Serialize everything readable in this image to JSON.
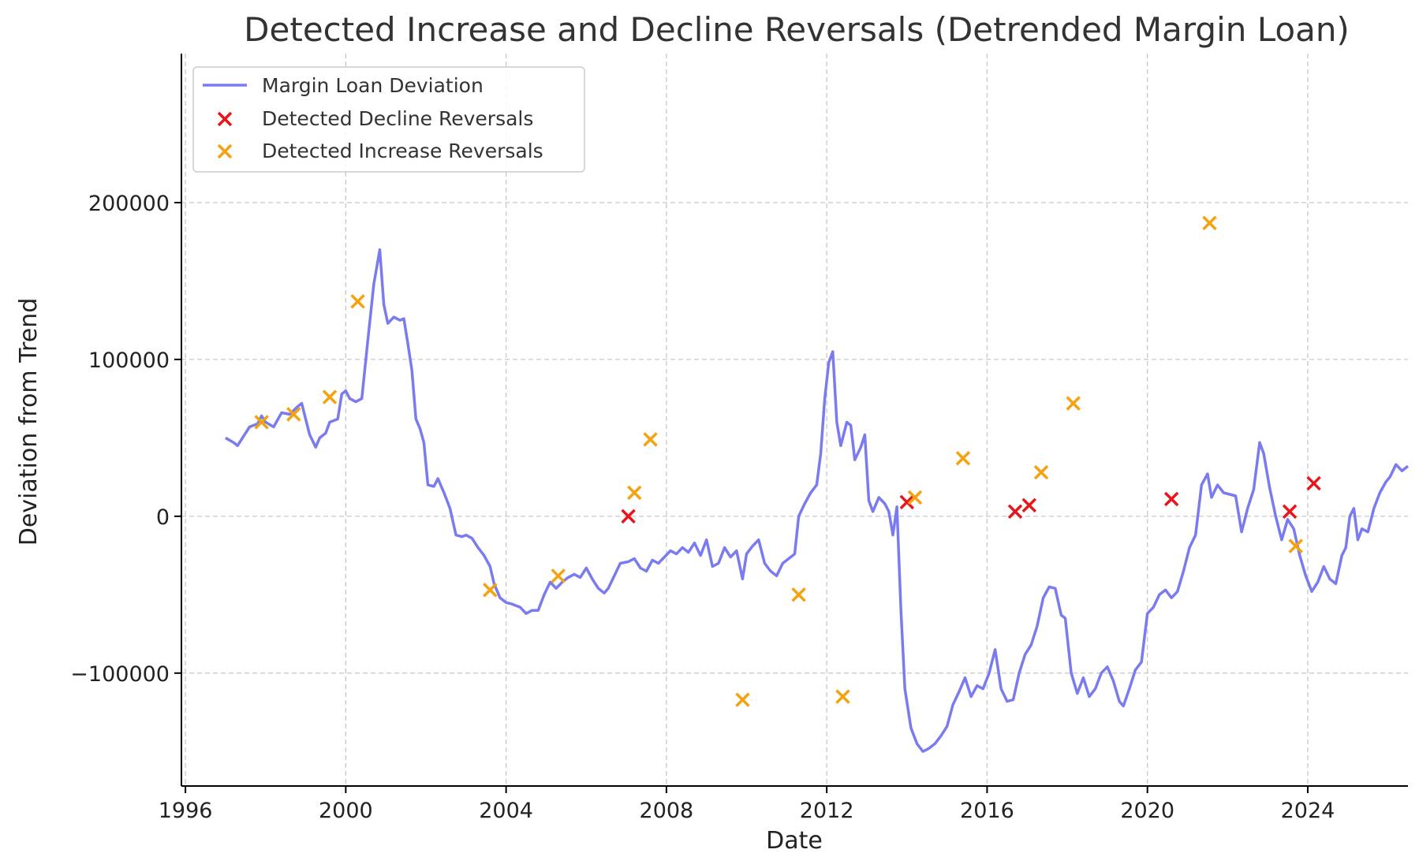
{
  "chart_data": {
    "type": "line",
    "title": "Detected Increase and Decline Reversals (Detrended Margin Loan)",
    "xlabel": "Date",
    "ylabel": "Deviation from Trend",
    "xlim": [
      1995.9,
      2026.5
    ],
    "ylim": [
      -172000,
      295000
    ],
    "x_ticks": [
      1996,
      2000,
      2004,
      2008,
      2012,
      2016,
      2020,
      2024
    ],
    "y_ticks": [
      -100000,
      0,
      100000,
      200000
    ],
    "y_tick_labels": [
      "−100000",
      "0",
      "100000",
      "200000"
    ],
    "grid": true,
    "legend_position": "top-left",
    "series": [
      {
        "name": "Margin Loan Deviation",
        "kind": "line",
        "color": "#7b7bf0",
        "points": [
          [
            1997.0,
            50000
          ],
          [
            1997.2,
            47000
          ],
          [
            1997.3,
            45000
          ],
          [
            1997.6,
            57000
          ],
          [
            1997.8,
            59000
          ],
          [
            1997.9,
            64000
          ],
          [
            1998.0,
            60000
          ],
          [
            1998.2,
            57000
          ],
          [
            1998.4,
            66000
          ],
          [
            1998.6,
            65000
          ],
          [
            1998.8,
            70000
          ],
          [
            1998.9,
            72000
          ],
          [
            1999.0,
            62000
          ],
          [
            1999.1,
            52000
          ],
          [
            1999.25,
            44000
          ],
          [
            1999.35,
            50000
          ],
          [
            1999.5,
            53000
          ],
          [
            1999.6,
            60000
          ],
          [
            1999.8,
            62000
          ],
          [
            1999.9,
            78000
          ],
          [
            2000.0,
            80000
          ],
          [
            2000.1,
            75000
          ],
          [
            2000.25,
            73000
          ],
          [
            2000.4,
            75000
          ],
          [
            2000.55,
            112000
          ],
          [
            2000.7,
            148000
          ],
          [
            2000.85,
            170000
          ],
          [
            2000.95,
            135000
          ],
          [
            2001.05,
            123000
          ],
          [
            2001.2,
            127000
          ],
          [
            2001.35,
            125000
          ],
          [
            2001.45,
            126000
          ],
          [
            2001.55,
            110000
          ],
          [
            2001.65,
            93000
          ],
          [
            2001.75,
            62000
          ],
          [
            2001.85,
            56000
          ],
          [
            2001.95,
            47000
          ],
          [
            2002.05,
            20000
          ],
          [
            2002.2,
            19000
          ],
          [
            2002.3,
            24000
          ],
          [
            2002.45,
            15000
          ],
          [
            2002.6,
            5000
          ],
          [
            2002.75,
            -12000
          ],
          [
            2002.9,
            -13000
          ],
          [
            2003.0,
            -12000
          ],
          [
            2003.15,
            -14000
          ],
          [
            2003.3,
            -20000
          ],
          [
            2003.45,
            -25000
          ],
          [
            2003.6,
            -32000
          ],
          [
            2003.7,
            -43000
          ],
          [
            2003.85,
            -52000
          ],
          [
            2004.0,
            -55000
          ],
          [
            2004.15,
            -56000
          ],
          [
            2004.35,
            -58000
          ],
          [
            2004.5,
            -62000
          ],
          [
            2004.65,
            -60000
          ],
          [
            2004.8,
            -60000
          ],
          [
            2004.95,
            -50000
          ],
          [
            2005.1,
            -42000
          ],
          [
            2005.25,
            -46000
          ],
          [
            2005.4,
            -42000
          ],
          [
            2005.55,
            -39000
          ],
          [
            2005.7,
            -37000
          ],
          [
            2005.85,
            -39000
          ],
          [
            2006.0,
            -33000
          ],
          [
            2006.15,
            -40000
          ],
          [
            2006.3,
            -46000
          ],
          [
            2006.45,
            -49000
          ],
          [
            2006.55,
            -46000
          ],
          [
            2006.7,
            -38000
          ],
          [
            2006.85,
            -30000
          ],
          [
            2007.05,
            -29000
          ],
          [
            2007.2,
            -27000
          ],
          [
            2007.35,
            -33000
          ],
          [
            2007.5,
            -35000
          ],
          [
            2007.65,
            -28000
          ],
          [
            2007.8,
            -30000
          ],
          [
            2007.95,
            -26000
          ],
          [
            2008.1,
            -22000
          ],
          [
            2008.25,
            -24000
          ],
          [
            2008.4,
            -20000
          ],
          [
            2008.55,
            -23000
          ],
          [
            2008.7,
            -17000
          ],
          [
            2008.85,
            -25000
          ],
          [
            2009.0,
            -15000
          ],
          [
            2009.15,
            -32000
          ],
          [
            2009.3,
            -30000
          ],
          [
            2009.45,
            -20000
          ],
          [
            2009.6,
            -26000
          ],
          [
            2009.75,
            -22000
          ],
          [
            2009.9,
            -40000
          ],
          [
            2010.0,
            -24000
          ],
          [
            2010.15,
            -19000
          ],
          [
            2010.3,
            -15000
          ],
          [
            2010.45,
            -30000
          ],
          [
            2010.6,
            -35000
          ],
          [
            2010.75,
            -38000
          ],
          [
            2010.9,
            -30000
          ],
          [
            2011.05,
            -27000
          ],
          [
            2011.2,
            -24000
          ],
          [
            2011.3,
            0
          ],
          [
            2011.45,
            8000
          ],
          [
            2011.6,
            15000
          ],
          [
            2011.75,
            20000
          ],
          [
            2011.85,
            40000
          ],
          [
            2011.95,
            75000
          ],
          [
            2012.05,
            98000
          ],
          [
            2012.15,
            105000
          ],
          [
            2012.25,
            60000
          ],
          [
            2012.35,
            45000
          ],
          [
            2012.5,
            60000
          ],
          [
            2012.6,
            58000
          ],
          [
            2012.7,
            36000
          ],
          [
            2012.85,
            44000
          ],
          [
            2012.95,
            52000
          ],
          [
            2013.05,
            10000
          ],
          [
            2013.15,
            3000
          ],
          [
            2013.3,
            12000
          ],
          [
            2013.45,
            8000
          ],
          [
            2013.55,
            3000
          ],
          [
            2013.65,
            -12000
          ],
          [
            2013.75,
            6000
          ],
          [
            2013.85,
            -60000
          ],
          [
            2013.95,
            -110000
          ],
          [
            2014.1,
            -135000
          ],
          [
            2014.25,
            -145000
          ],
          [
            2014.4,
            -150000
          ],
          [
            2014.55,
            -148000
          ],
          [
            2014.7,
            -145000
          ],
          [
            2014.85,
            -140000
          ],
          [
            2015.0,
            -134000
          ],
          [
            2015.15,
            -120000
          ],
          [
            2015.3,
            -112000
          ],
          [
            2015.45,
            -103000
          ],
          [
            2015.6,
            -115000
          ],
          [
            2015.75,
            -108000
          ],
          [
            2015.9,
            -110000
          ],
          [
            2016.05,
            -100000
          ],
          [
            2016.2,
            -85000
          ],
          [
            2016.35,
            -110000
          ],
          [
            2016.5,
            -118000
          ],
          [
            2016.65,
            -117000
          ],
          [
            2016.8,
            -100000
          ],
          [
            2016.95,
            -88000
          ],
          [
            2017.1,
            -82000
          ],
          [
            2017.25,
            -70000
          ],
          [
            2017.4,
            -52000
          ],
          [
            2017.55,
            -45000
          ],
          [
            2017.7,
            -46000
          ],
          [
            2017.85,
            -63000
          ],
          [
            2017.95,
            -65000
          ],
          [
            2018.1,
            -100000
          ],
          [
            2018.25,
            -113000
          ],
          [
            2018.4,
            -103000
          ],
          [
            2018.55,
            -115000
          ],
          [
            2018.7,
            -110000
          ],
          [
            2018.85,
            -100000
          ],
          [
            2019.0,
            -96000
          ],
          [
            2019.15,
            -105000
          ],
          [
            2019.3,
            -118000
          ],
          [
            2019.4,
            -121000
          ],
          [
            2019.55,
            -110000
          ],
          [
            2019.7,
            -98000
          ],
          [
            2019.85,
            -93000
          ],
          [
            2020.0,
            -62000
          ],
          [
            2020.15,
            -58000
          ],
          [
            2020.3,
            -50000
          ],
          [
            2020.45,
            -47000
          ],
          [
            2020.6,
            -52000
          ],
          [
            2020.75,
            -48000
          ],
          [
            2020.9,
            -35000
          ],
          [
            2021.05,
            -20000
          ],
          [
            2021.2,
            -12000
          ],
          [
            2021.35,
            20000
          ],
          [
            2021.5,
            27000
          ],
          [
            2021.6,
            12000
          ],
          [
            2021.75,
            20000
          ],
          [
            2021.9,
            15000
          ],
          [
            2022.05,
            14000
          ],
          [
            2022.2,
            13000
          ],
          [
            2022.35,
            -10000
          ],
          [
            2022.5,
            5000
          ],
          [
            2022.65,
            17000
          ],
          [
            2022.8,
            47000
          ],
          [
            2022.9,
            40000
          ],
          [
            2023.05,
            18000
          ],
          [
            2023.2,
            0
          ],
          [
            2023.35,
            -15000
          ],
          [
            2023.5,
            -2000
          ],
          [
            2023.65,
            -8000
          ],
          [
            2023.8,
            -25000
          ],
          [
            2023.95,
            -38000
          ],
          [
            2024.1,
            -48000
          ],
          [
            2024.25,
            -42000
          ],
          [
            2024.4,
            -32000
          ],
          [
            2024.55,
            -40000
          ],
          [
            2024.7,
            -43000
          ],
          [
            2024.85,
            -25000
          ],
          [
            2024.95,
            -20000
          ],
          [
            2025.05,
            0
          ],
          [
            2025.15,
            5000
          ],
          [
            2025.25,
            -15000
          ],
          [
            2025.35,
            -8000
          ],
          [
            2025.5,
            -10000
          ],
          [
            2025.65,
            5000
          ],
          [
            2025.8,
            15000
          ],
          [
            2025.95,
            22000
          ],
          [
            2026.05,
            25000
          ],
          [
            2026.2,
            33000
          ],
          [
            2026.35,
            29000
          ],
          [
            2026.5,
            32000
          ]
        ]
      }
    ],
    "decline_reversals": {
      "name": "Detected Decline Reversals",
      "kind": "scatter",
      "marker": "x",
      "color": "#e8161a",
      "points": [
        [
          2007.05,
          0
        ],
        [
          2014.0,
          9000
        ],
        [
          2016.7,
          3000
        ],
        [
          2017.05,
          7000
        ],
        [
          2020.6,
          11000
        ],
        [
          2023.55,
          3000
        ],
        [
          2024.15,
          21000
        ]
      ]
    },
    "increase_reversals": {
      "name": "Detected Increase Reversals",
      "kind": "scatter",
      "marker": "x",
      "color": "#f5a20f",
      "points": [
        [
          1997.9,
          60000
        ],
        [
          1998.7,
          65000
        ],
        [
          1999.6,
          76000
        ],
        [
          2000.3,
          137000
        ],
        [
          2003.6,
          -47000
        ],
        [
          2005.3,
          -38000
        ],
        [
          2007.2,
          15000
        ],
        [
          2007.6,
          49000
        ],
        [
          2009.9,
          -117000
        ],
        [
          2011.3,
          -50000
        ],
        [
          2012.4,
          -115000
        ],
        [
          2014.2,
          12000
        ],
        [
          2015.4,
          37000
        ],
        [
          2017.35,
          28000
        ],
        [
          2018.15,
          72000
        ],
        [
          2021.55,
          187000
        ],
        [
          2023.7,
          -19000
        ]
      ]
    }
  }
}
